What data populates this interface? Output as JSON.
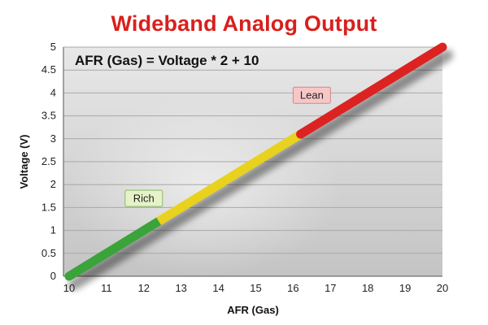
{
  "chart_data": {
    "type": "line",
    "title": "Wideband Analog Output",
    "annotation": "AFR (Gas) = Voltage * 2 + 10",
    "xlabel": "AFR (Gas)",
    "ylabel": "Voltage (V)",
    "xlim": [
      10,
      20
    ],
    "ylim": [
      0,
      5
    ],
    "x_ticks": [
      "10",
      "11",
      "12",
      "13",
      "14",
      "15",
      "16",
      "17",
      "18",
      "19",
      "20"
    ],
    "y_ticks": [
      "0",
      "0.5",
      "1",
      "1.5",
      "2",
      "2.5",
      "3",
      "3.5",
      "4",
      "4.5",
      "5"
    ],
    "grid": true,
    "series": [
      {
        "color": "#3aa43a",
        "x": [
          10,
          12.4
        ],
        "y": [
          0,
          1.2
        ]
      },
      {
        "color": "#e8d21e",
        "x": [
          12.4,
          16.2
        ],
        "y": [
          1.2,
          3.1
        ]
      },
      {
        "color": "#dd2222",
        "x": [
          16.2,
          20
        ],
        "y": [
          3.1,
          5
        ]
      }
    ],
    "callouts": [
      {
        "text": "Rich",
        "x": 12.0,
        "y": 1.7,
        "bg": "#e6f3c8",
        "border": "#8ab86a"
      },
      {
        "text": "Lean",
        "x": 16.5,
        "y": 3.95,
        "bg": "#f7c7c7",
        "border": "#c98a8a"
      }
    ]
  }
}
